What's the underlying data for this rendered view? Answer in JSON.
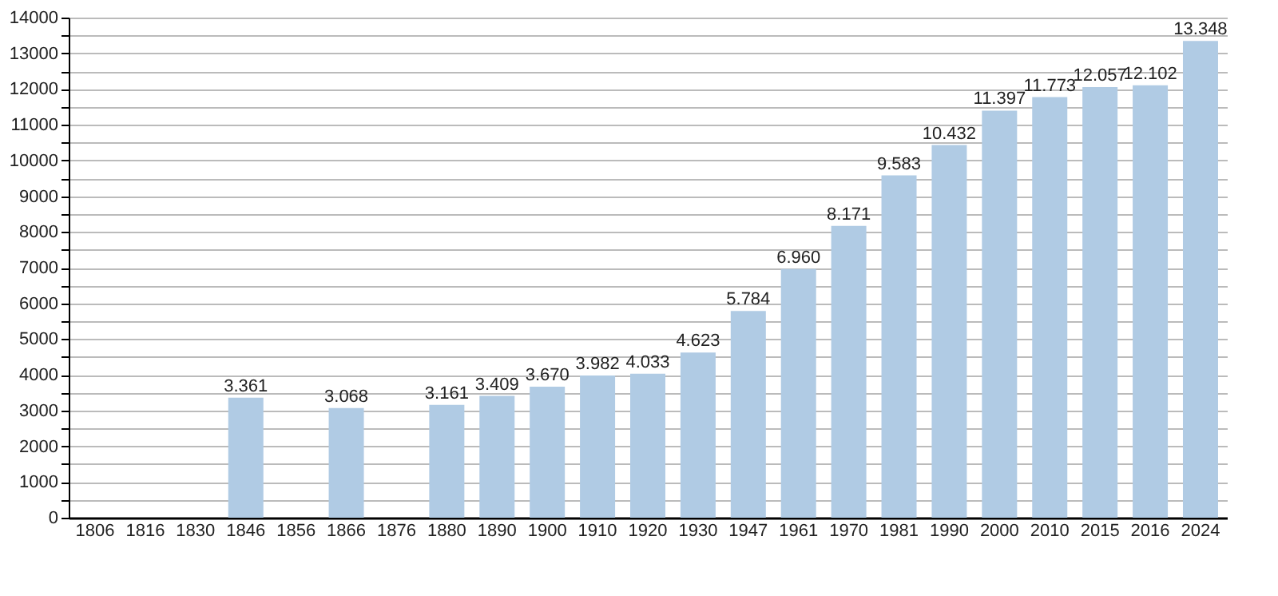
{
  "chart_data": {
    "type": "bar",
    "categories": [
      "1806",
      "1816",
      "1830",
      "1846",
      "1856",
      "1866",
      "1876",
      "1880",
      "1890",
      "1900",
      "1910",
      "1920",
      "1930",
      "1947",
      "1961",
      "1970",
      "1981",
      "1990",
      "2000",
      "2010",
      "2015",
      "2016",
      "2024"
    ],
    "values": [
      null,
      null,
      null,
      3361,
      null,
      3068,
      null,
      3161,
      3409,
      3670,
      3982,
      4033,
      4623,
      5784,
      6960,
      8171,
      9583,
      10432,
      11397,
      11773,
      12057,
      12102,
      13348
    ],
    "value_labels": [
      null,
      null,
      null,
      "3.361",
      null,
      "3.068",
      null,
      "3.161",
      "3.409",
      "3.670",
      "3.982",
      "4.033",
      "4.623",
      "5.784",
      "6.960",
      "8.171",
      "9.583",
      "10.432",
      "11.397",
      "11.773",
      "12.057",
      "12.102",
      "13.348"
    ],
    "color": "#b0cbe4",
    "ylim": [
      0,
      14000
    ],
    "yticks": [
      0,
      {
        "value": 500,
        "label": null
      },
      1000,
      {
        "value": 1500,
        "label": null
      },
      2000,
      {
        "value": 2500,
        "label": null
      },
      3000,
      {
        "value": 3500,
        "label": null
      },
      4000,
      {
        "value": 4500,
        "label": null
      },
      5000,
      {
        "value": 5500,
        "label": null
      },
      6000,
      {
        "value": 6500,
        "label": null
      },
      7000,
      {
        "value": 7500,
        "label": null
      },
      8000,
      {
        "value": 8500,
        "label": null
      },
      9000,
      {
        "value": 9500,
        "label": null
      },
      10000,
      {
        "value": 10500,
        "label": null
      },
      11000,
      {
        "value": 11500,
        "label": null
      },
      12000,
      {
        "value": 12500,
        "label": null
      },
      13000,
      {
        "value": 13500,
        "label": null
      },
      14000
    ],
    "grid": "y"
  }
}
